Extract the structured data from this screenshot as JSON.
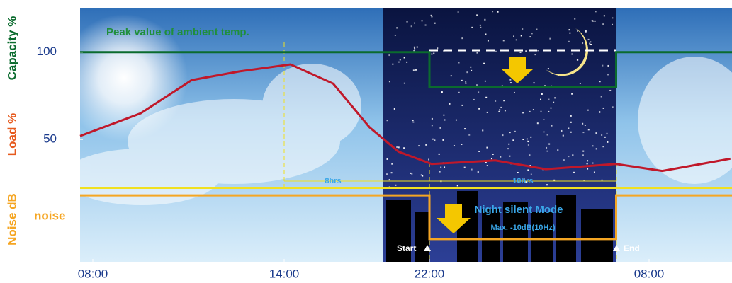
{
  "chart_data": {
    "type": "line",
    "annotations": {
      "peak": "Peak value of ambient temp.",
      "span1": "8hrs",
      "span2": "10hrs",
      "mode": "Night silent Mode",
      "mode_detail": "Max. -10dB(10Hz)",
      "start": "Start",
      "end": "End",
      "noise": "noise"
    },
    "xlim": [
      7.6,
      35.8
    ],
    "xticks": [
      {
        "value": 8,
        "label": "08:00"
      },
      {
        "value": 14,
        "label": "14:00"
      },
      {
        "value": 22,
        "label": "22:00"
      },
      {
        "value": 32,
        "label": "08:00"
      }
    ],
    "ylim": [
      -20,
      125
    ],
    "yticks": [
      50,
      100
    ],
    "series": [
      {
        "name": "Capacity %",
        "color": "#0b6b2e",
        "x": [
          7.6,
          22,
          22,
          30.5,
          30.5,
          35.8
        ],
        "values": [
          100,
          100,
          80,
          80,
          100,
          100
        ]
      },
      {
        "name": "Load %",
        "color": "#c0182a",
        "x": [
          7.6,
          9.5,
          11.1,
          12.6,
          14.35,
          16.7,
          18.7,
          20.3,
          22.1,
          25,
          27.3,
          30.5,
          32.6,
          35.7
        ],
        "values": [
          52,
          65,
          84,
          89,
          93,
          82,
          57,
          43,
          36,
          38,
          33,
          36,
          32,
          39
        ]
      },
      {
        "name": "Noise dB",
        "color": "#f5a623",
        "x": [
          7.6,
          22,
          22,
          30.5,
          30.5,
          35.8
        ],
        "values": [
          18,
          18,
          -7,
          -7,
          18,
          18
        ]
      }
    ]
  }
}
